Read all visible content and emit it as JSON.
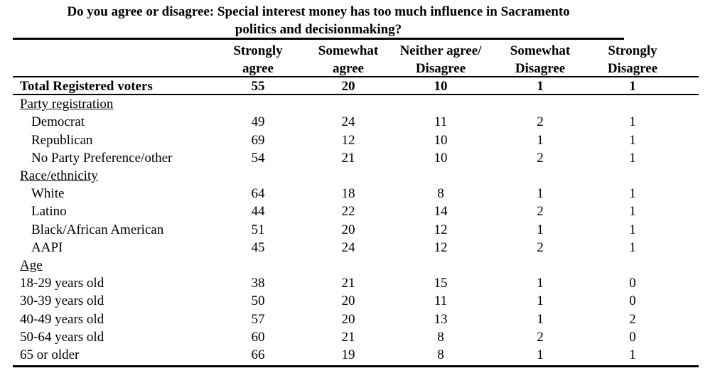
{
  "title": {
    "line1": "Do you agree or disagree: Special interest money has too much influence in Sacramento",
    "line2": "politics and decisionmaking?"
  },
  "columns": [
    {
      "line1": "Strongly",
      "line2": "agree"
    },
    {
      "line1": "Somewhat",
      "line2": "agree"
    },
    {
      "line1": "Neither agree/",
      "line2": "Disagree"
    },
    {
      "line1": "Somewhat",
      "line2": "Disagree"
    },
    {
      "line1": "Strongly",
      "line2": "Disagree"
    }
  ],
  "rows": [
    {
      "type": "total",
      "label": "Total Registered voters",
      "values": [
        "55",
        "20",
        "10",
        "1",
        "1"
      ]
    },
    {
      "type": "section",
      "label": "Party registration",
      "values": []
    },
    {
      "type": "indent",
      "label": "Democrat",
      "values": [
        "49",
        "24",
        "11",
        "2",
        "1"
      ]
    },
    {
      "type": "indent",
      "label": "Republican",
      "values": [
        "69",
        "12",
        "10",
        "1",
        "1"
      ]
    },
    {
      "type": "indent",
      "label": "No Party Preference/other",
      "values": [
        "54",
        "21",
        "10",
        "2",
        "1"
      ]
    },
    {
      "type": "section",
      "label": "Race/ethnicity",
      "values": []
    },
    {
      "type": "indent",
      "label": "White",
      "values": [
        "64",
        "18",
        "8",
        "1",
        "1"
      ]
    },
    {
      "type": "indent",
      "label": "Latino",
      "values": [
        "44",
        "22",
        "14",
        "2",
        "1"
      ]
    },
    {
      "type": "indent",
      "label": "Black/African American",
      "values": [
        "51",
        "20",
        "12",
        "1",
        "1"
      ]
    },
    {
      "type": "indent",
      "label": "AAPI",
      "values": [
        "45",
        "24",
        "12",
        "2",
        "1"
      ]
    },
    {
      "type": "section",
      "label": "Age",
      "values": []
    },
    {
      "type": "plain",
      "label": "18-29 years old",
      "values": [
        "38",
        "21",
        "15",
        "1",
        "0"
      ]
    },
    {
      "type": "plain",
      "label": "30-39 years old",
      "values": [
        "50",
        "20",
        "11",
        "1",
        "0"
      ]
    },
    {
      "type": "plain",
      "label": "40-49 years old",
      "values": [
        "57",
        "20",
        "13",
        "1",
        "2"
      ]
    },
    {
      "type": "plain",
      "label": "50-64 years old",
      "values": [
        "60",
        "21",
        "8",
        "2",
        "0"
      ]
    },
    {
      "type": "plain",
      "label": "65 or older",
      "values": [
        "66",
        "19",
        "8",
        "1",
        "1"
      ]
    }
  ]
}
